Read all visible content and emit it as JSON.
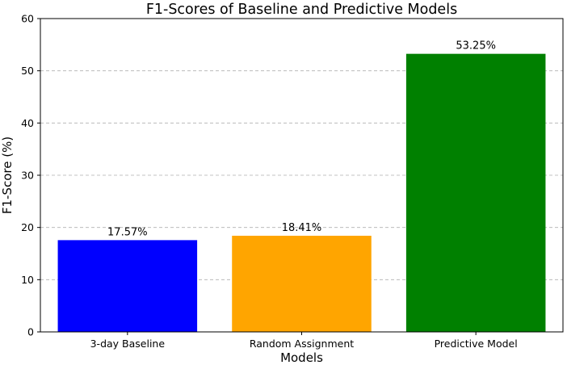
{
  "chart_data": {
    "type": "bar",
    "title": "F1-Scores of Baseline and Predictive Models",
    "xlabel": "Models",
    "ylabel": "F1-Score (%)",
    "categories": [
      "3-day Baseline",
      "Random Assignment",
      "Predictive Model"
    ],
    "values": [
      17.57,
      18.41,
      53.25
    ],
    "data_labels": [
      "17.57%",
      "18.41%",
      "53.25%"
    ],
    "colors": [
      "#0000ff",
      "#ffa500",
      "#008000"
    ],
    "ylim": [
      0,
      60
    ],
    "yticks": [
      0,
      10,
      20,
      30,
      40,
      50,
      60
    ],
    "grid": "y-axis dashed",
    "legend": "none"
  }
}
